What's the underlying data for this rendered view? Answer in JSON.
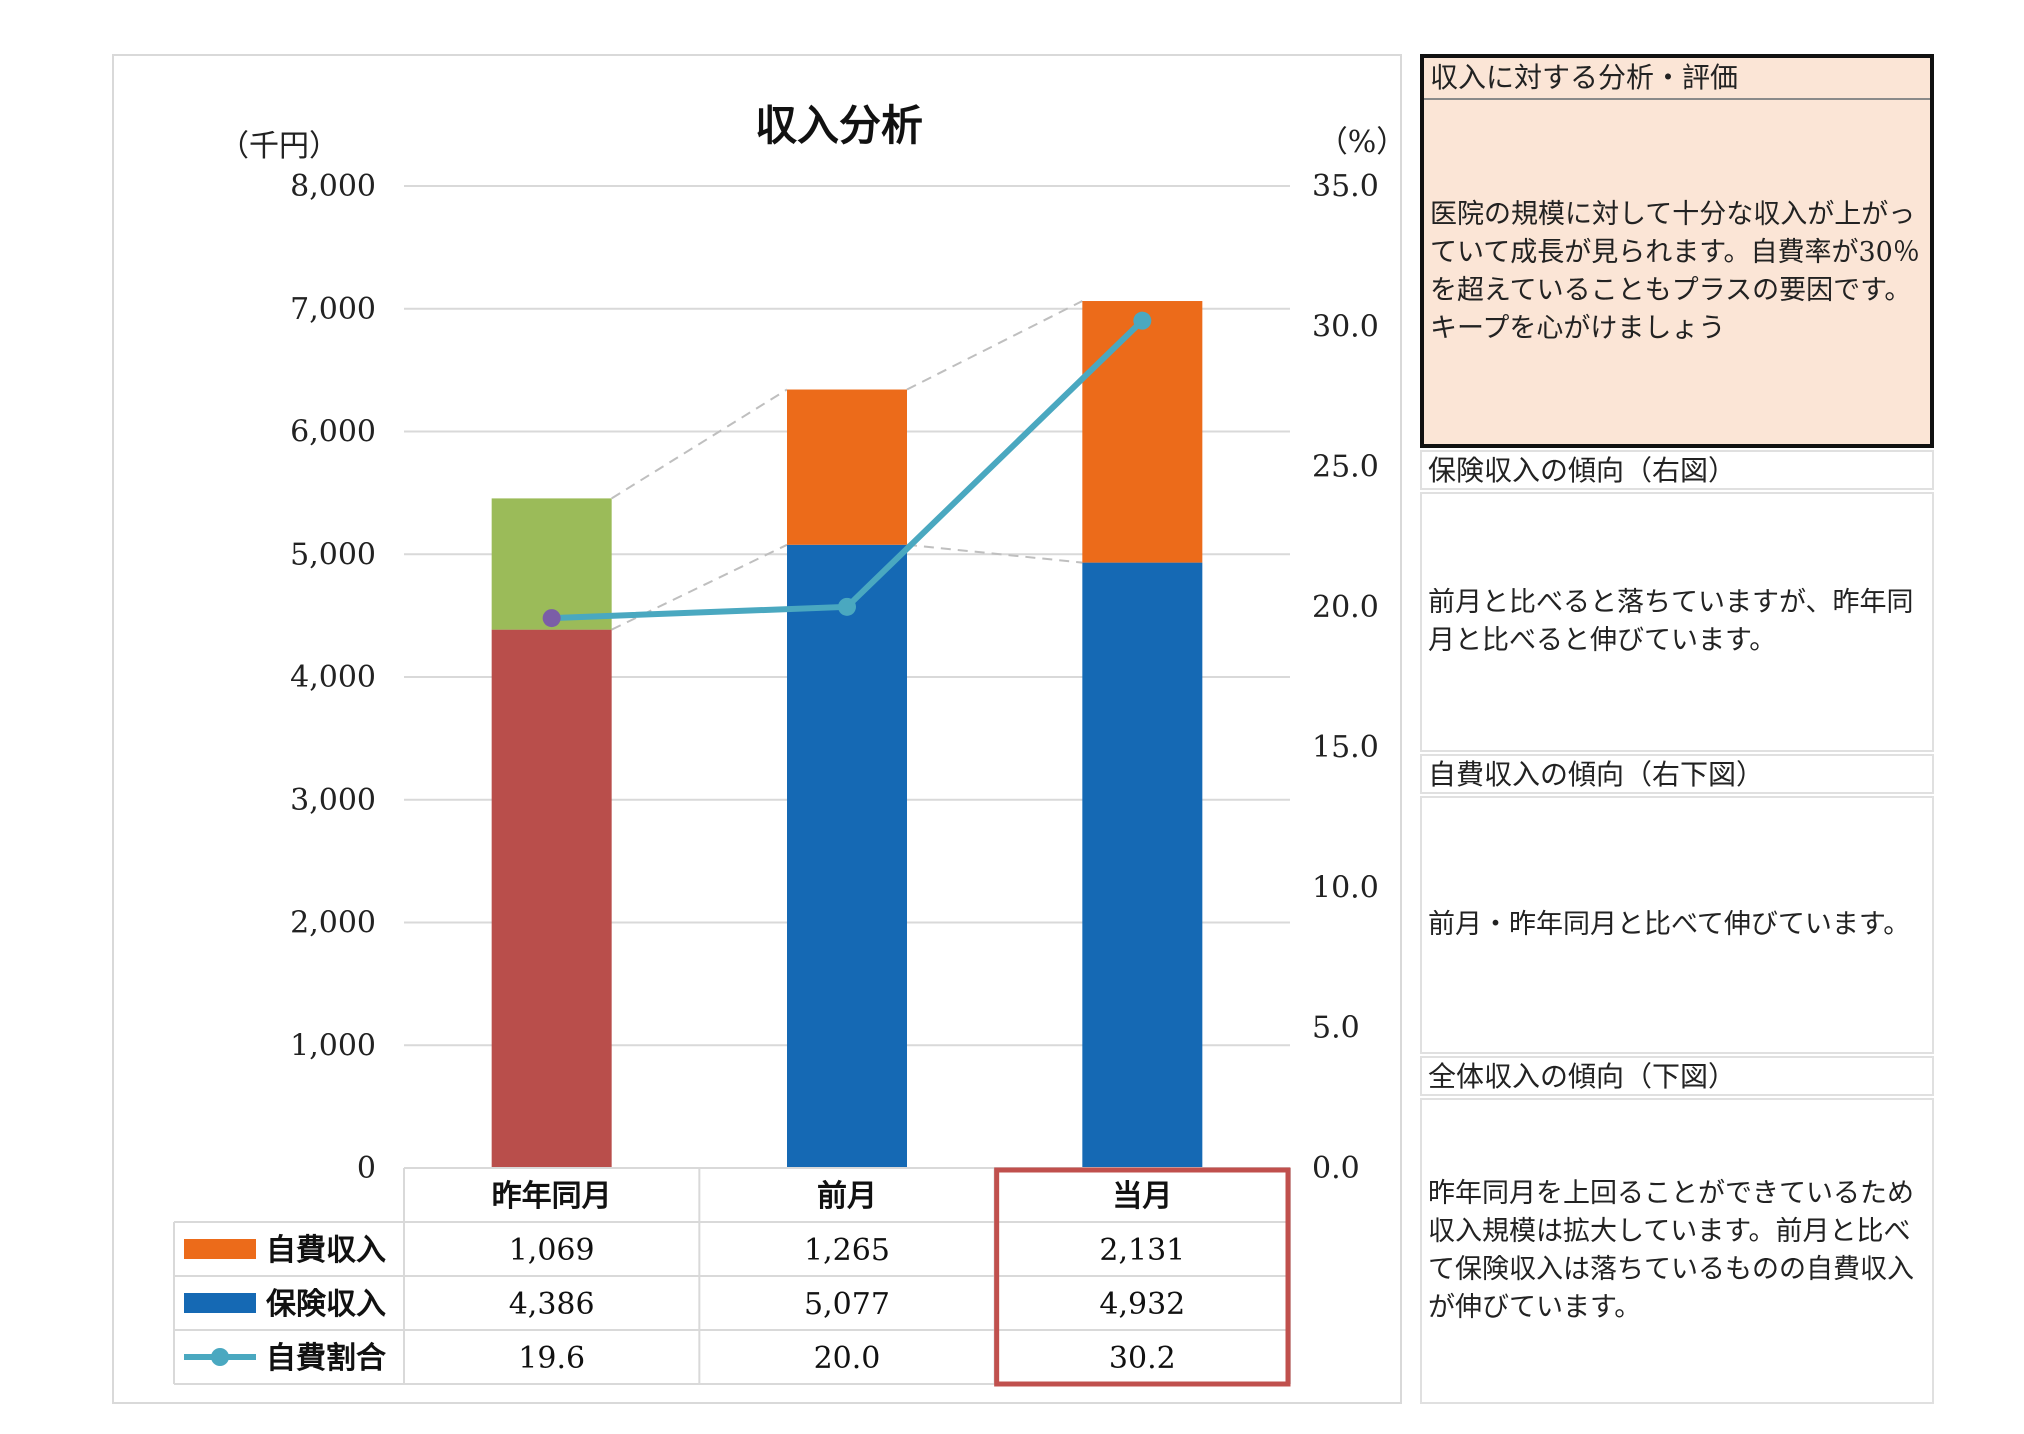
{
  "chart_data": {
    "type": "bar",
    "title": "収入分析",
    "y_left_label": "（千円）",
    "y_right_label": "（%）",
    "categories": [
      "昨年同月",
      "前月",
      "当月"
    ],
    "ylim_left": [
      0,
      8000
    ],
    "ylim_right": [
      0,
      35
    ],
    "left_ticks": [
      "8,000",
      "7,000",
      "6,000",
      "5,000",
      "4,000",
      "3,000",
      "2,000",
      "1,000",
      "0"
    ],
    "right_ticks": [
      "35.0",
      "30.0",
      "25.0",
      "20.0",
      "15.0",
      "10.0",
      "5.0",
      "0.0"
    ],
    "grid": true,
    "series": [
      {
        "name": "自費収入",
        "values": [
          1069,
          1265,
          2131
        ],
        "colors": [
          "#9bbb59",
          "#ec6b1a",
          "#ec6b1a"
        ],
        "labels": [
          "1,069",
          "1,265",
          "2,131"
        ],
        "axis": "left",
        "stacked": true
      },
      {
        "name": "保険収入",
        "values": [
          4386,
          5077,
          4932
        ],
        "colors": [
          "#b94e4b",
          "#1569b4",
          "#1569b4"
        ],
        "labels": [
          "4,386",
          "5,077",
          "4,932"
        ],
        "axis": "left",
        "stacked": true
      },
      {
        "name": "自費割合",
        "values": [
          19.6,
          20.0,
          30.2
        ],
        "color": "#4aa8c0",
        "marker_color_first": "#7b5ea7",
        "labels": [
          "19.6",
          "20.0",
          "30.2"
        ],
        "axis": "right",
        "type": "line"
      }
    ],
    "legend_colors": {
      "self_pay": "#ec6b1a",
      "insurance": "#1569b4",
      "ratio": "#4aa8c0"
    },
    "connector_color": "#bfbfbf",
    "highlight_color": "#c0504d",
    "highlight_column": "当月"
  },
  "panel": {
    "analysis_header": "収入に対する分析・評価",
    "analysis_text": "医院の規模に対して十分な収入が上がっていて成長が見られます。自費率が30％を超えていることもプラスの要因です。キープを心がけましょう",
    "insurance_header": "保険収入の傾向（右図）",
    "insurance_text": "前月と比べると落ちていますが、昨年同月と比べると伸びています。",
    "selfpay_header": "自費収入の傾向（右下図）",
    "selfpay_text": "前月・昨年同月と比べて伸びています。",
    "total_header": "全体収入の傾向（下図）",
    "total_text": "昨年同月を上回ることができているため収入規模は拡大しています。前月と比べて保険収入は落ちているものの自費収入が伸びています。",
    "highlight_bg": "#fbe5d6"
  }
}
